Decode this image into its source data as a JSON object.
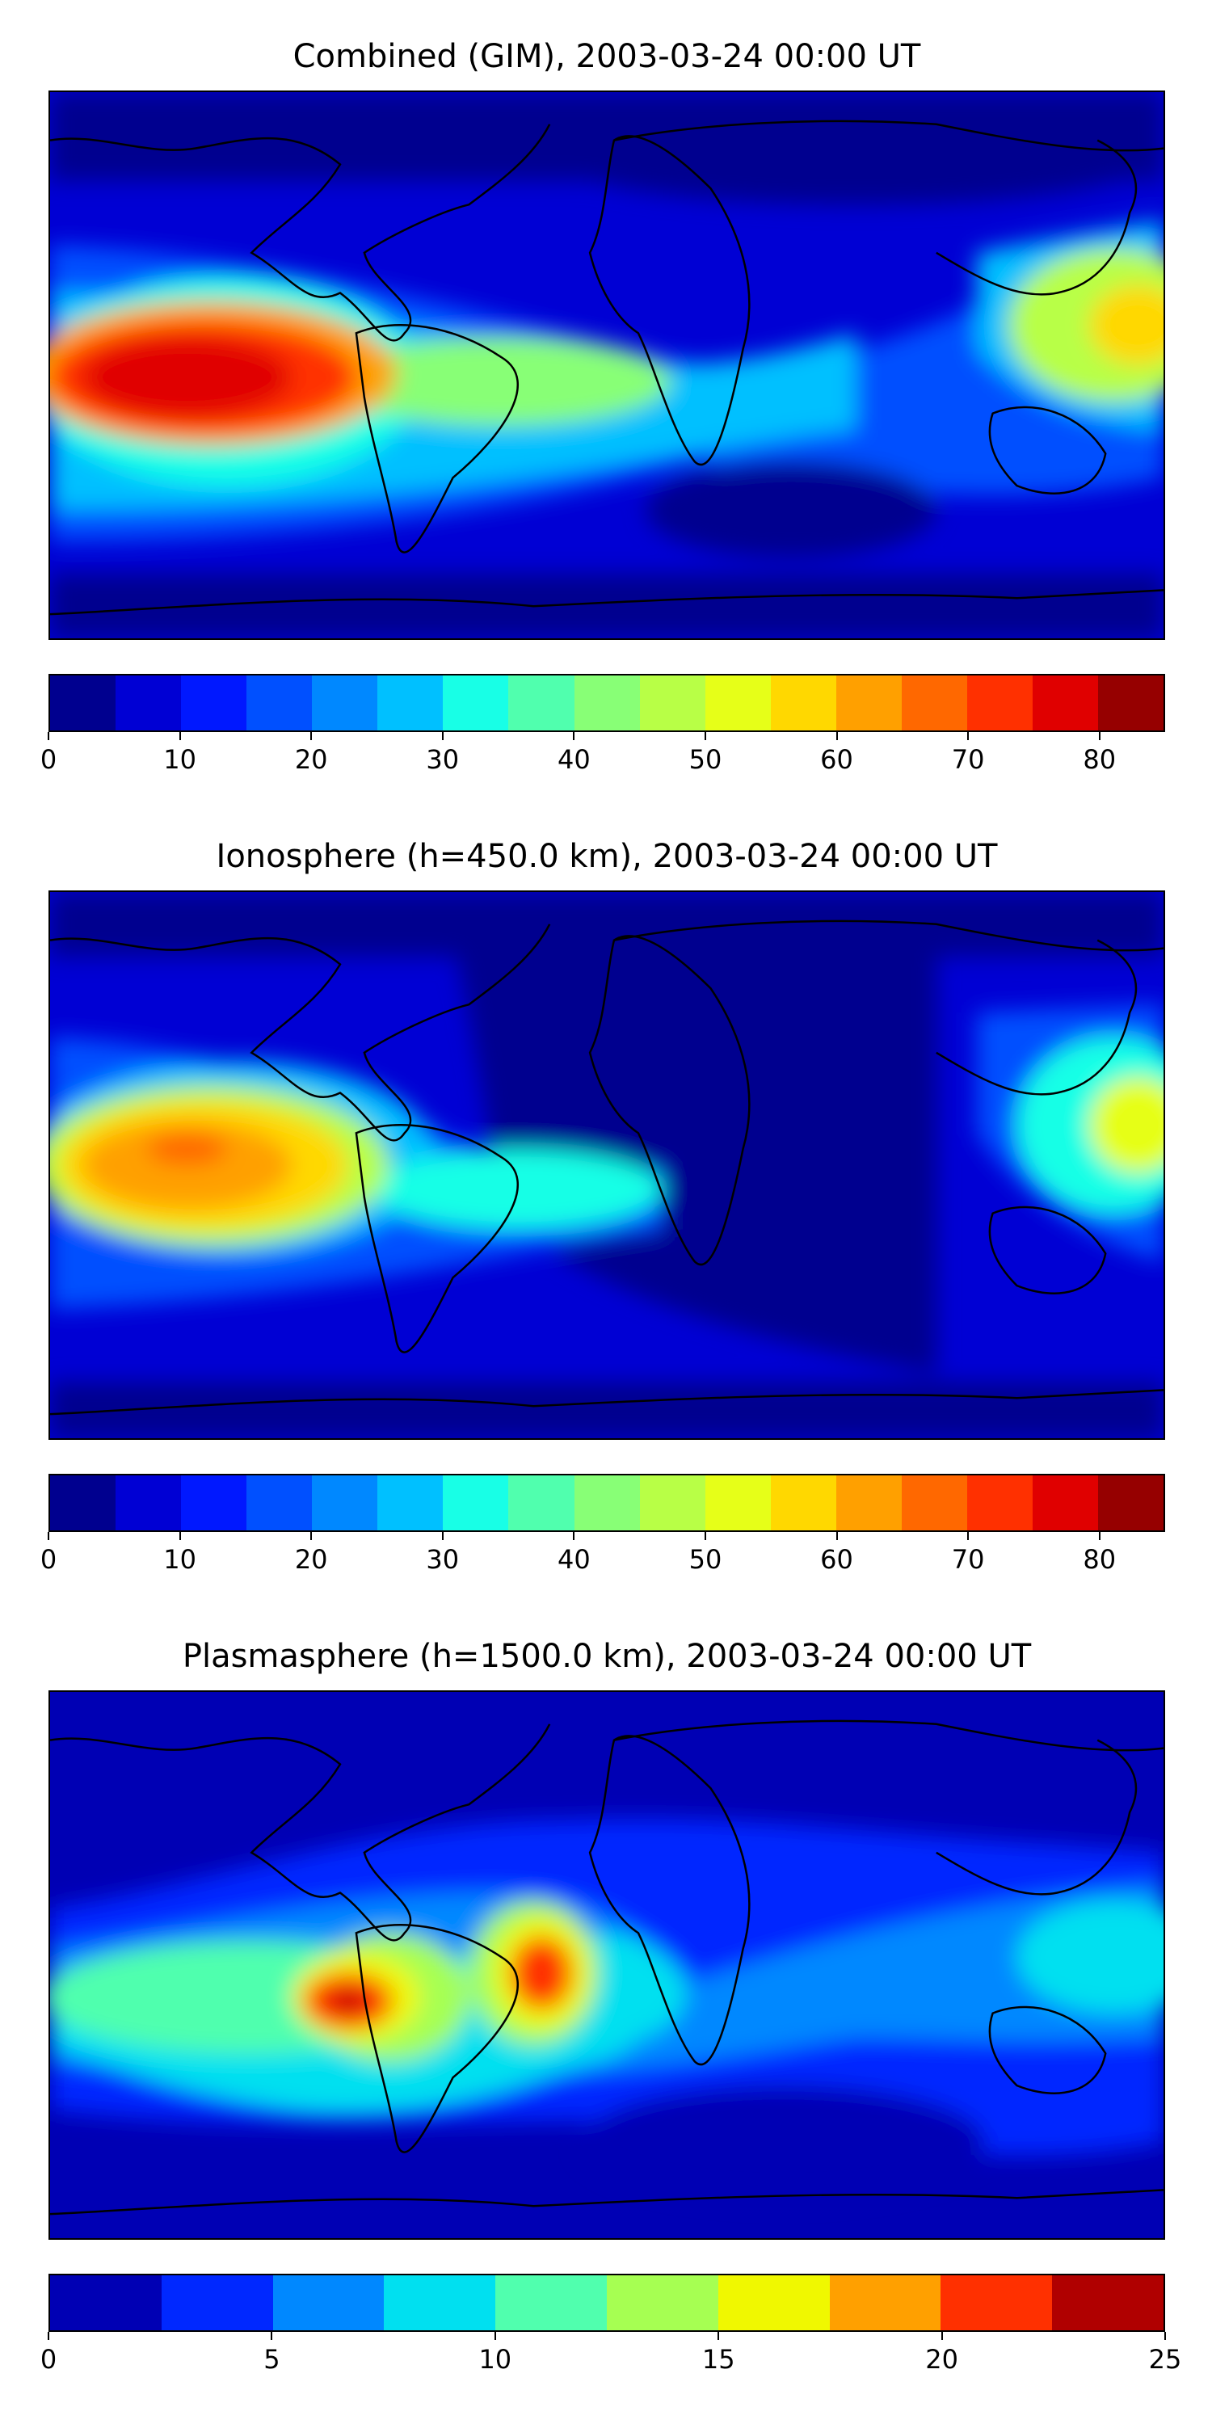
{
  "panels": [
    {
      "title": "Combined (GIM), 2003-03-24 00:00 UT",
      "colorbar": {
        "min": 0,
        "max": 85,
        "step": 5,
        "ticks": [
          "0",
          "10",
          "20",
          "30",
          "40",
          "50",
          "60",
          "70",
          "80"
        ],
        "tick_values": [
          0,
          10,
          20,
          30,
          40,
          50,
          60,
          70,
          80
        ],
        "colors": [
          "#00008f",
          "#0000d4",
          "#0018ff",
          "#0050ff",
          "#0088ff",
          "#00c0ff",
          "#18ffe6",
          "#50ffae",
          "#88ff76",
          "#b8ff46",
          "#e6ff18",
          "#ffd800",
          "#ffa000",
          "#ff6800",
          "#ff3000",
          "#e00000",
          "#960000"
        ]
      },
      "map_features": [
        {
          "value": 6,
          "note": "background"
        },
        {
          "value": 3,
          "note": "polar-low"
        },
        {
          "value": 22,
          "note": "tropical-band"
        },
        {
          "value": 32,
          "note": "pacific-band"
        },
        {
          "value": 48,
          "note": "equatorial-anomaly"
        },
        {
          "value": 72,
          "note": "pacific-maximum"
        },
        {
          "value": 80,
          "note": "pacific-core"
        },
        {
          "value": 55,
          "note": "asia-maximum"
        }
      ]
    },
    {
      "title": "Ionosphere  (h=450.0 km), 2003-03-24 00:00 UT",
      "colorbar": {
        "min": 0,
        "max": 85,
        "step": 5,
        "ticks": [
          "0",
          "10",
          "20",
          "30",
          "40",
          "50",
          "60",
          "70",
          "80"
        ],
        "tick_values": [
          0,
          10,
          20,
          30,
          40,
          50,
          60,
          70,
          80
        ],
        "colors": [
          "#00008f",
          "#0000d4",
          "#0018ff",
          "#0050ff",
          "#0088ff",
          "#00c0ff",
          "#18ffe6",
          "#50ffae",
          "#88ff76",
          "#b8ff46",
          "#e6ff18",
          "#ffd800",
          "#ffa000",
          "#ff6800",
          "#ff3000",
          "#e00000",
          "#960000"
        ]
      },
      "map_features": [
        {
          "value": 5,
          "note": "background"
        },
        {
          "value": 2,
          "note": "atlantic-africa-low"
        },
        {
          "value": 18,
          "note": "tropical-band"
        },
        {
          "value": 30,
          "note": "pacific-band"
        },
        {
          "value": 45,
          "note": "pacific-upper"
        },
        {
          "value": 62,
          "note": "pacific-maximum"
        },
        {
          "value": 68,
          "note": "pacific-core"
        },
        {
          "value": 50,
          "note": "asia-maximum"
        }
      ]
    },
    {
      "title": "Plasmasphere (h=1500.0 km), 2003-03-24 00:00 UT",
      "colorbar": {
        "min": 0,
        "max": 25,
        "step": 2.5,
        "ticks": [
          "0",
          "5",
          "10",
          "15",
          "20",
          "25"
        ],
        "tick_values": [
          0,
          5,
          10,
          15,
          20,
          25
        ],
        "colors": [
          "#0000b4",
          "#0028ff",
          "#0088ff",
          "#00e0f0",
          "#50ffae",
          "#a6ff52",
          "#f0f800",
          "#ffa000",
          "#ff3000",
          "#b00000"
        ]
      },
      "map_features": [
        {
          "value": 1.5,
          "note": "background"
        },
        {
          "value": 4,
          "note": "mid-latitude-band"
        },
        {
          "value": 7,
          "note": "tropical-band"
        },
        {
          "value": 11,
          "note": "south-america-band"
        },
        {
          "value": 16,
          "note": "peaks-ring"
        },
        {
          "value": 21,
          "note": "peaks-inner"
        },
        {
          "value": 23,
          "note": "peak-core"
        }
      ]
    }
  ]
}
